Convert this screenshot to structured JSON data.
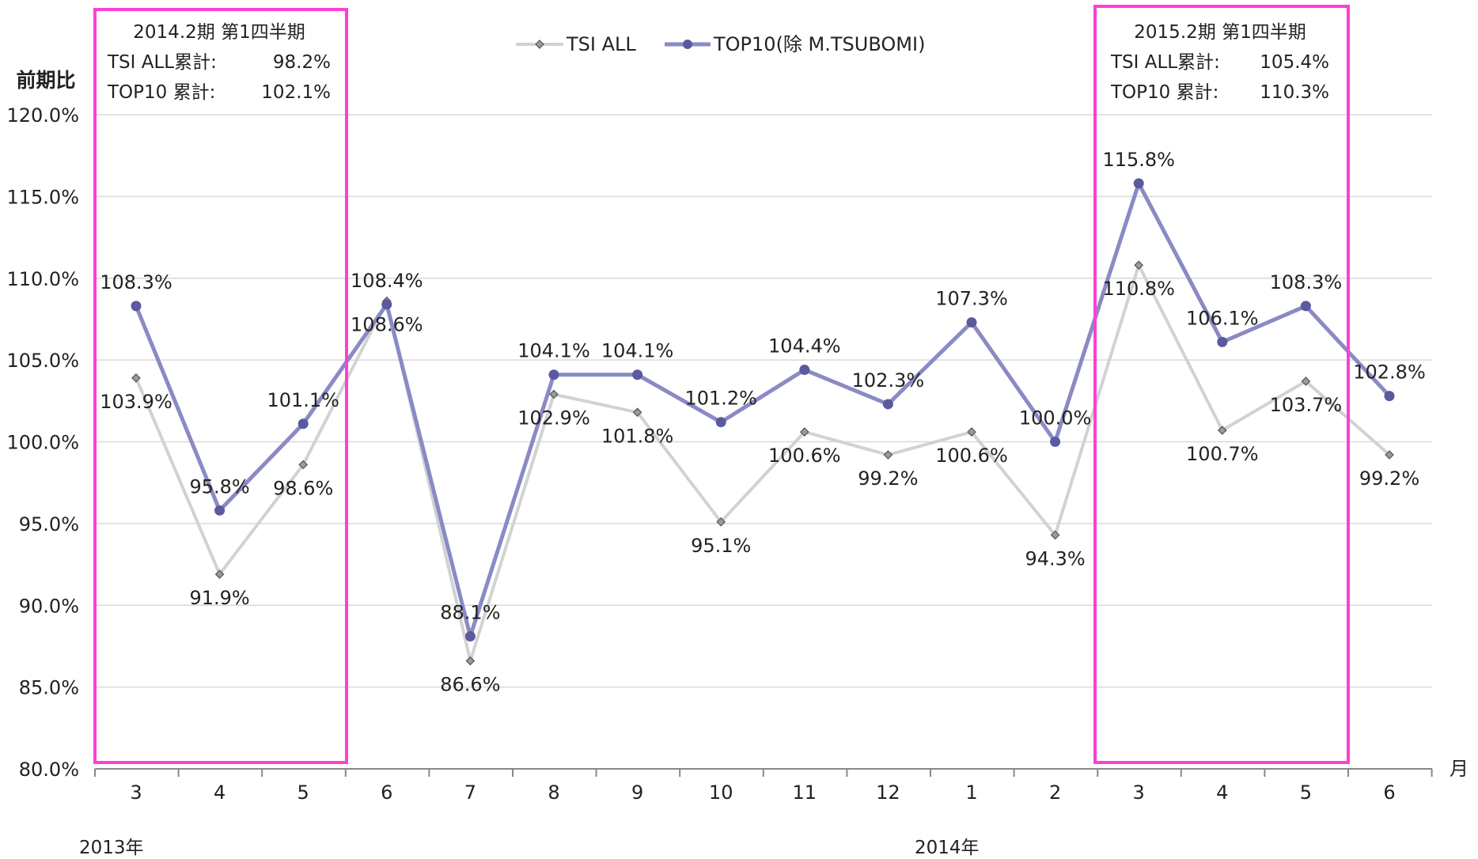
{
  "chart_data": {
    "type": "line",
    "ylabel": "前期比",
    "xunit": "月",
    "ylim": [
      80,
      120
    ],
    "yticks": [
      "80.0%",
      "85.0%",
      "90.0%",
      "95.0%",
      "100.0%",
      "105.0%",
      "110.0%",
      "115.0%",
      "120.0%"
    ],
    "categories": [
      "3",
      "4",
      "5",
      "6",
      "7",
      "8",
      "9",
      "10",
      "11",
      "12",
      "1",
      "2",
      "3",
      "4",
      "5",
      "6"
    ],
    "year_labels": [
      "2013年",
      "2014年"
    ],
    "series": [
      {
        "name": "TSI ALL",
        "color": "#d2d2d2",
        "marker": "diamond",
        "values": [
          103.9,
          91.9,
          98.6,
          108.6,
          86.6,
          102.9,
          101.8,
          95.1,
          100.6,
          99.2,
          100.6,
          94.3,
          110.8,
          100.7,
          103.7,
          99.2
        ],
        "labels": [
          "103.9%",
          "91.9%",
          "98.6%",
          "108.6%",
          "86.6%",
          "102.9%",
          "101.8%",
          "95.1%",
          "100.6%",
          "99.2%",
          "100.6%",
          "94.3%",
          "110.8%",
          "100.7%",
          "103.7%",
          "99.2%"
        ]
      },
      {
        "name": "TOP10(除 M.TSUBOMI)",
        "color": "#8a8ac4",
        "marker": "circle",
        "values": [
          108.3,
          95.8,
          101.1,
          108.4,
          88.1,
          104.1,
          104.1,
          101.2,
          104.4,
          102.3,
          107.3,
          100.0,
          115.8,
          106.1,
          108.3,
          102.8
        ],
        "labels": [
          "108.3%",
          "95.8%",
          "101.1%",
          "108.4%",
          "88.1%",
          "104.1%",
          "104.1%",
          "101.2%",
          "104.4%",
          "102.3%",
          "107.3%",
          "100.0%",
          "115.8%",
          "106.1%",
          "108.3%",
          "102.8%"
        ]
      }
    ],
    "legend_position": "top-center",
    "grid": true
  },
  "annotations": {
    "box_color": "#ff3fd4",
    "left_box": {
      "title": "2014.2期 第1四半期",
      "row1_label": "TSI ALL累計:",
      "row1_value": "98.2%",
      "row2_label": "TOP10 累計:",
      "row2_value": "102.1%"
    },
    "right_box": {
      "title": "2015.2期 第1四半期",
      "row1_label": "TSI ALL累計:",
      "row1_value": "105.4%",
      "row2_label": "TOP10 累計:",
      "row2_value": "110.3%"
    }
  }
}
